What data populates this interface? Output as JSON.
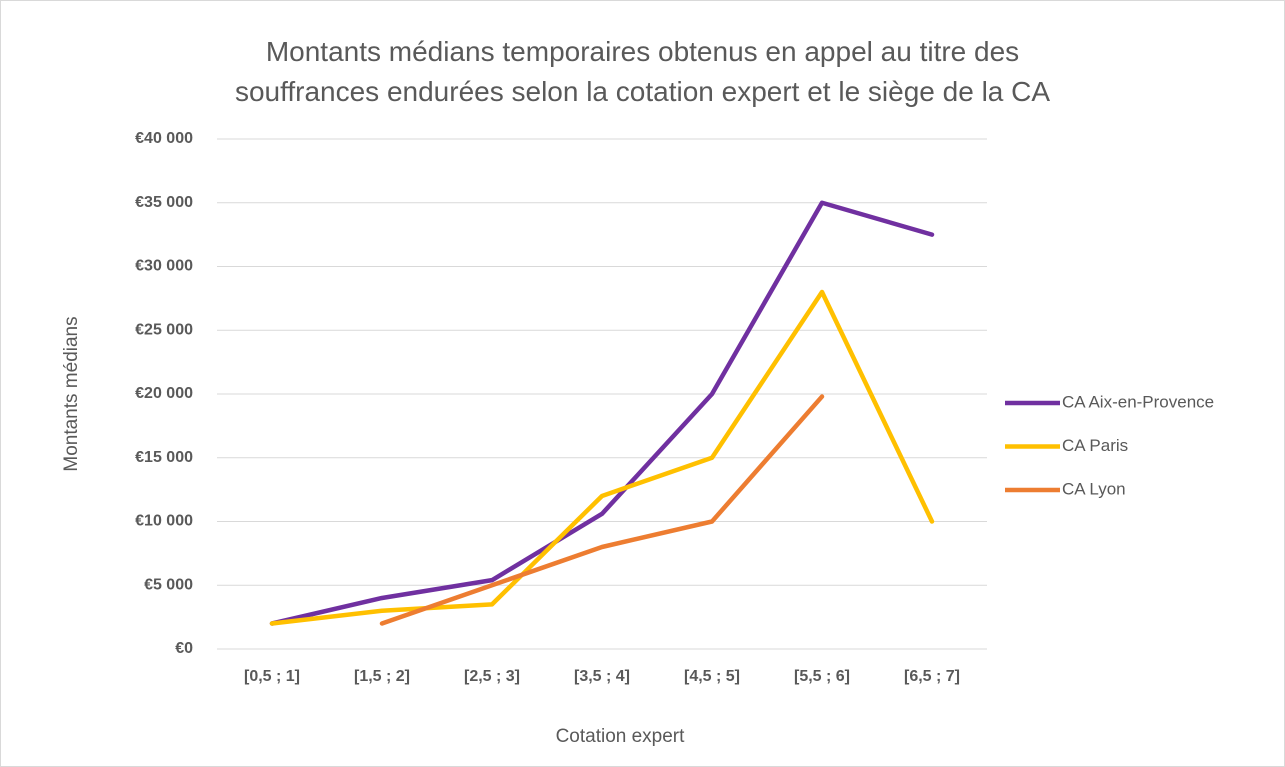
{
  "chart_data": {
    "type": "line",
    "title": "Montants médians temporaires obtenus en appel au titre des\nsouffrances endurées selon la cotation expert et le siège de la CA",
    "x_label": "Cotation expert",
    "y_label": "Montants médians",
    "categories": [
      "[0,5 ; 1]",
      "[1,5 ; 2]",
      "[2,5 ; 3]",
      "[3,5 ; 4]",
      "[4,5 ; 5]",
      "[5,5 ; 6]",
      "[6,5 ; 7]"
    ],
    "series": [
      {
        "name": "CA Aix-en-Provence",
        "color": "#7030a0",
        "values": [
          2000,
          4000,
          5400,
          10600,
          20000,
          35000,
          32500
        ]
      },
      {
        "name": "CA Paris",
        "color": "#ffc000",
        "values": [
          2000,
          3000,
          3500,
          12000,
          15000,
          28000,
          10000
        ]
      },
      {
        "name": "CA Lyon",
        "color": "#ed7d31",
        "values": [
          null,
          2000,
          5000,
          8000,
          10000,
          19800,
          null
        ]
      }
    ],
    "ylim": [
      0,
      40000
    ],
    "yticks": [
      {
        "value": 0,
        "label": "€0"
      },
      {
        "value": 5000,
        "label": "€5 000"
      },
      {
        "value": 10000,
        "label": "€10 000"
      },
      {
        "value": 15000,
        "label": "€15 000"
      },
      {
        "value": 20000,
        "label": "€20 000"
      },
      {
        "value": 25000,
        "label": "€25 000"
      },
      {
        "value": 30000,
        "label": "€30 000"
      },
      {
        "value": 35000,
        "label": "€35 000"
      },
      {
        "value": 40000,
        "label": "€40 000"
      }
    ],
    "grid": true,
    "legend": "right"
  }
}
